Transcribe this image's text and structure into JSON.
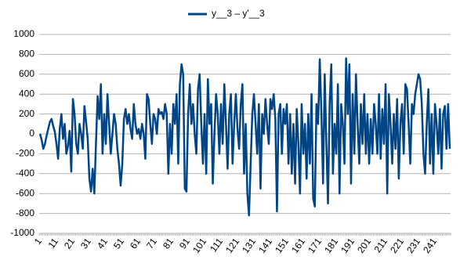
{
  "chart_data": {
    "type": "line",
    "categories": [
      "1",
      null,
      null,
      null,
      null,
      null,
      null,
      null,
      null,
      null,
      "11",
      null,
      null,
      null,
      null,
      null,
      null,
      null,
      null,
      null,
      "21",
      null,
      null,
      null,
      null,
      null,
      null,
      null,
      null,
      null,
      "31",
      null,
      null,
      null,
      null,
      null,
      null,
      null,
      null,
      null,
      "41",
      null,
      null,
      null,
      null,
      null,
      null,
      null,
      null,
      null,
      "51",
      null,
      null,
      null,
      null,
      null,
      null,
      null,
      null,
      null,
      "61",
      null,
      null,
      null,
      null,
      null,
      null,
      null,
      null,
      null,
      "71",
      null,
      null,
      null,
      null,
      null,
      null,
      null,
      null,
      null,
      "81",
      null,
      null,
      null,
      null,
      null,
      null,
      null,
      null,
      null,
      "91",
      null,
      null,
      null,
      null,
      null,
      null,
      null,
      null,
      null,
      "101",
      null,
      null,
      null,
      null,
      null,
      null,
      null,
      null,
      null,
      "111",
      null,
      null,
      null,
      null,
      null,
      null,
      null,
      null,
      null,
      "121",
      null,
      null,
      null,
      null,
      null,
      null,
      null,
      null,
      null,
      "131",
      null,
      null,
      null,
      null,
      null,
      null,
      null,
      null,
      null,
      "141",
      null,
      null,
      null,
      null,
      null,
      null,
      null,
      null,
      null,
      "151",
      null,
      null,
      null,
      null,
      null,
      null,
      null,
      null,
      null,
      "161",
      null,
      null,
      null,
      null,
      null,
      null,
      null,
      null,
      null,
      "171",
      null,
      null,
      null,
      null,
      null,
      null,
      null,
      null,
      null,
      "181",
      null,
      null,
      null,
      null,
      null,
      null,
      null,
      null,
      null,
      "191",
      null,
      null,
      null,
      null,
      null,
      null,
      null,
      null,
      null,
      "201",
      null,
      null,
      null,
      null,
      null,
      null,
      null,
      null,
      null,
      "211",
      null,
      null,
      null,
      null,
      null,
      null,
      null,
      null,
      null,
      "221",
      null,
      null,
      null,
      null,
      null,
      null,
      null,
      null,
      null,
      "231",
      null,
      null,
      null,
      null,
      null,
      null,
      null,
      null,
      null,
      "241",
      null,
      null,
      null,
      null,
      null,
      null,
      null,
      null,
      null
    ],
    "series": [
      {
        "name": "y__3 – y'__3",
        "color": "#004586",
        "values": [
          0,
          -60,
          -150,
          -100,
          -20,
          50,
          120,
          150,
          80,
          20,
          -100,
          -250,
          50,
          200,
          -50,
          100,
          -200,
          -120,
          30,
          -380,
          350,
          200,
          -100,
          -200,
          100,
          0,
          -150,
          280,
          120,
          -50,
          -450,
          -580,
          -350,
          -600,
          -100,
          380,
          150,
          500,
          -200,
          200,
          -100,
          400,
          100,
          -200,
          0,
          200,
          100,
          -150,
          -300,
          -520,
          -300,
          150,
          250,
          100,
          200,
          50,
          -50,
          300,
          100,
          0,
          50,
          -50,
          100,
          0,
          -250,
          400,
          350,
          100,
          -100,
          200,
          150,
          0,
          250,
          200,
          220,
          150,
          300,
          200,
          -400,
          100,
          -200,
          300,
          100,
          400,
          -300,
          500,
          700,
          600,
          -550,
          -580,
          200,
          500,
          100,
          300,
          0,
          -200,
          450,
          600,
          100,
          -300,
          200,
          -400,
          550,
          100,
          300,
          -500,
          0,
          400,
          200,
          -200,
          300,
          -100,
          500,
          100,
          -350,
          200,
          400,
          -300,
          100,
          400,
          50,
          -150,
          300,
          500,
          -400,
          100,
          -600,
          -820,
          -300,
          200,
          400,
          100,
          -200,
          300,
          -550,
          200,
          0,
          350,
          100,
          -100,
          350,
          250,
          400,
          150,
          -780,
          200,
          300,
          -200,
          250,
          100,
          300,
          -300,
          200,
          -400,
          100,
          -500,
          250,
          -100,
          -600,
          300,
          -200,
          100,
          -450,
          200,
          -300,
          400,
          -650,
          -730,
          300,
          100,
          750,
          200,
          -500,
          600,
          -100,
          -700,
          300,
          700,
          -400,
          100,
          -200,
          500,
          -600,
          300,
          100,
          -300,
          760,
          200,
          700,
          -500,
          400,
          -200,
          600,
          100,
          -300,
          300,
          -100,
          400,
          -200,
          200,
          -300,
          150,
          -200,
          300,
          100,
          -200,
          400,
          -250,
          250,
          -100,
          500,
          -600,
          400,
          100,
          -300,
          200,
          -150,
          350,
          -450,
          100,
          300,
          -200,
          500,
          450,
          100,
          -300,
          300,
          200,
          400,
          500,
          600,
          550,
          300,
          -200,
          -400,
          100,
          450,
          -300,
          200,
          -400,
          300,
          100,
          -200,
          250,
          -350,
          200,
          280,
          -150,
          300,
          -150
        ]
      }
    ],
    "ylim": [
      -1000,
      1000
    ],
    "yticks": [
      -1000,
      -800,
      -600,
      -400,
      -200,
      0,
      200,
      400,
      600,
      800,
      1000
    ],
    "grid": true,
    "legend": "top"
  }
}
